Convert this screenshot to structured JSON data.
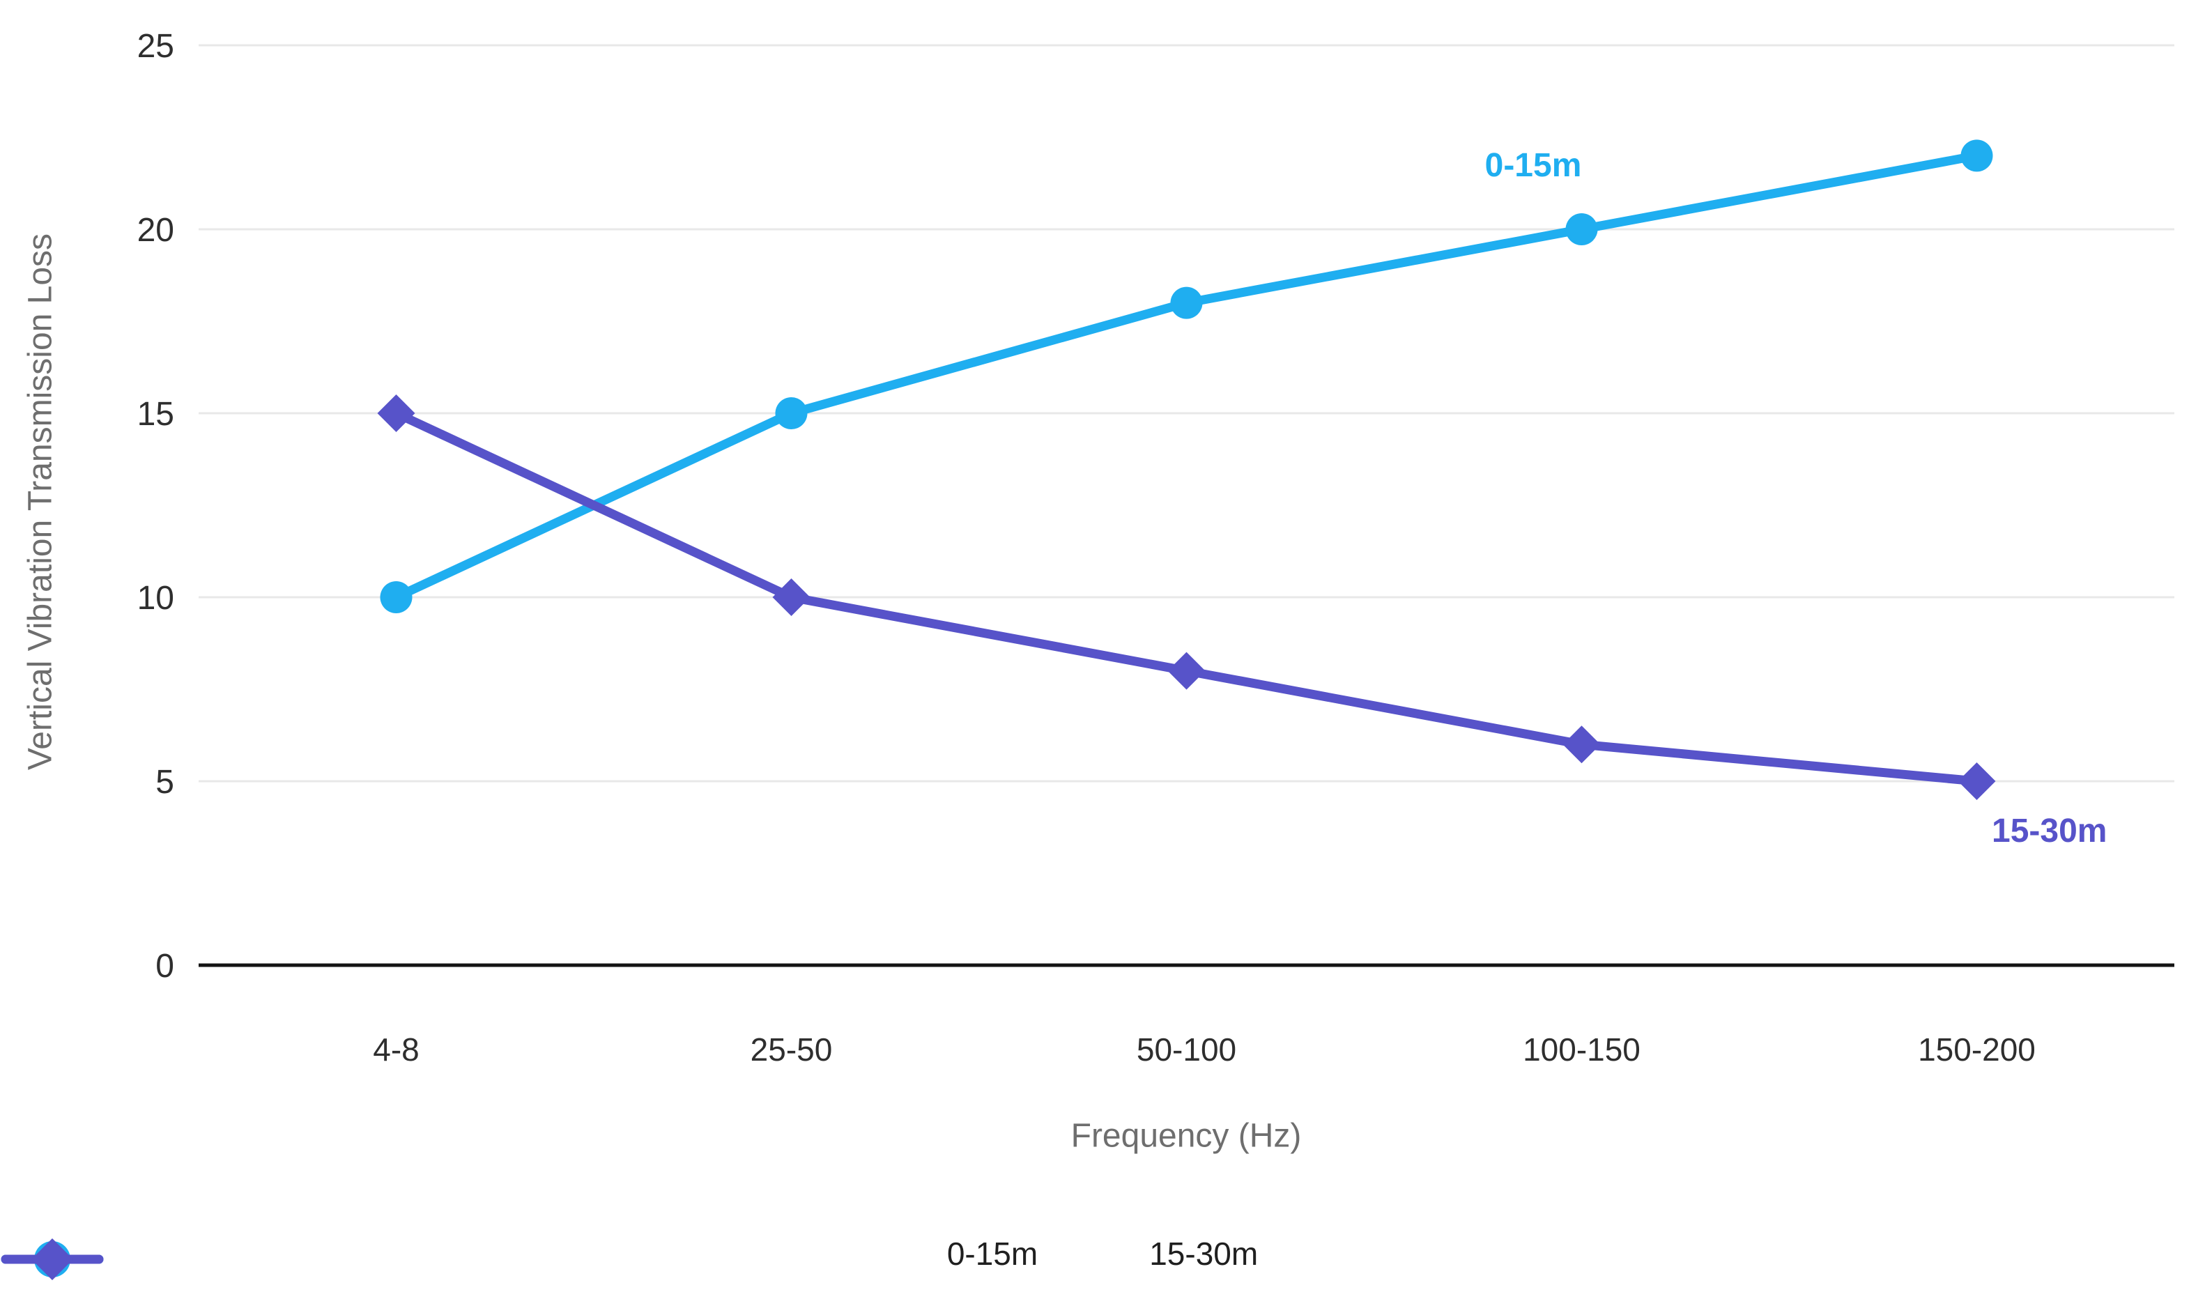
{
  "chart_data": {
    "type": "line",
    "title": "",
    "categories": [
      "4-8",
      "25-50",
      "50-100",
      "100-150",
      "150-200"
    ],
    "series": [
      {
        "name": "0-15m",
        "values": [
          10,
          15,
          18,
          20,
          22
        ],
        "color": "#1FAEF0",
        "marker": "circle"
      },
      {
        "name": "15-30m",
        "values": [
          15,
          10,
          8,
          6,
          5
        ],
        "color": "#5753C9",
        "marker": "diamond"
      }
    ],
    "xlabel": "Frequency (Hz)",
    "ylabel": "Vertical Vibration Transmission Loss",
    "ylim": [
      0,
      25
    ],
    "yticks": [
      0,
      5,
      10,
      15,
      20,
      25
    ],
    "grid": "horizontal",
    "legend_position": "bottom",
    "annotations": [
      {
        "text": "0-15m",
        "series": "0-15m",
        "x": 2200,
        "y": 253,
        "anchor": "middle"
      },
      {
        "text": "15-30m",
        "series": "15-30m",
        "x": 2858,
        "y": 1208,
        "anchor": "start"
      }
    ]
  },
  "styles": {
    "background": "#ffffff",
    "grid_color": "#e8e8e8",
    "axis_color": "#141414",
    "tick_label_color": "#2e2e2e",
    "axis_title_color": "#6e6e6e",
    "legend_text_color": "#1f1f1f"
  }
}
